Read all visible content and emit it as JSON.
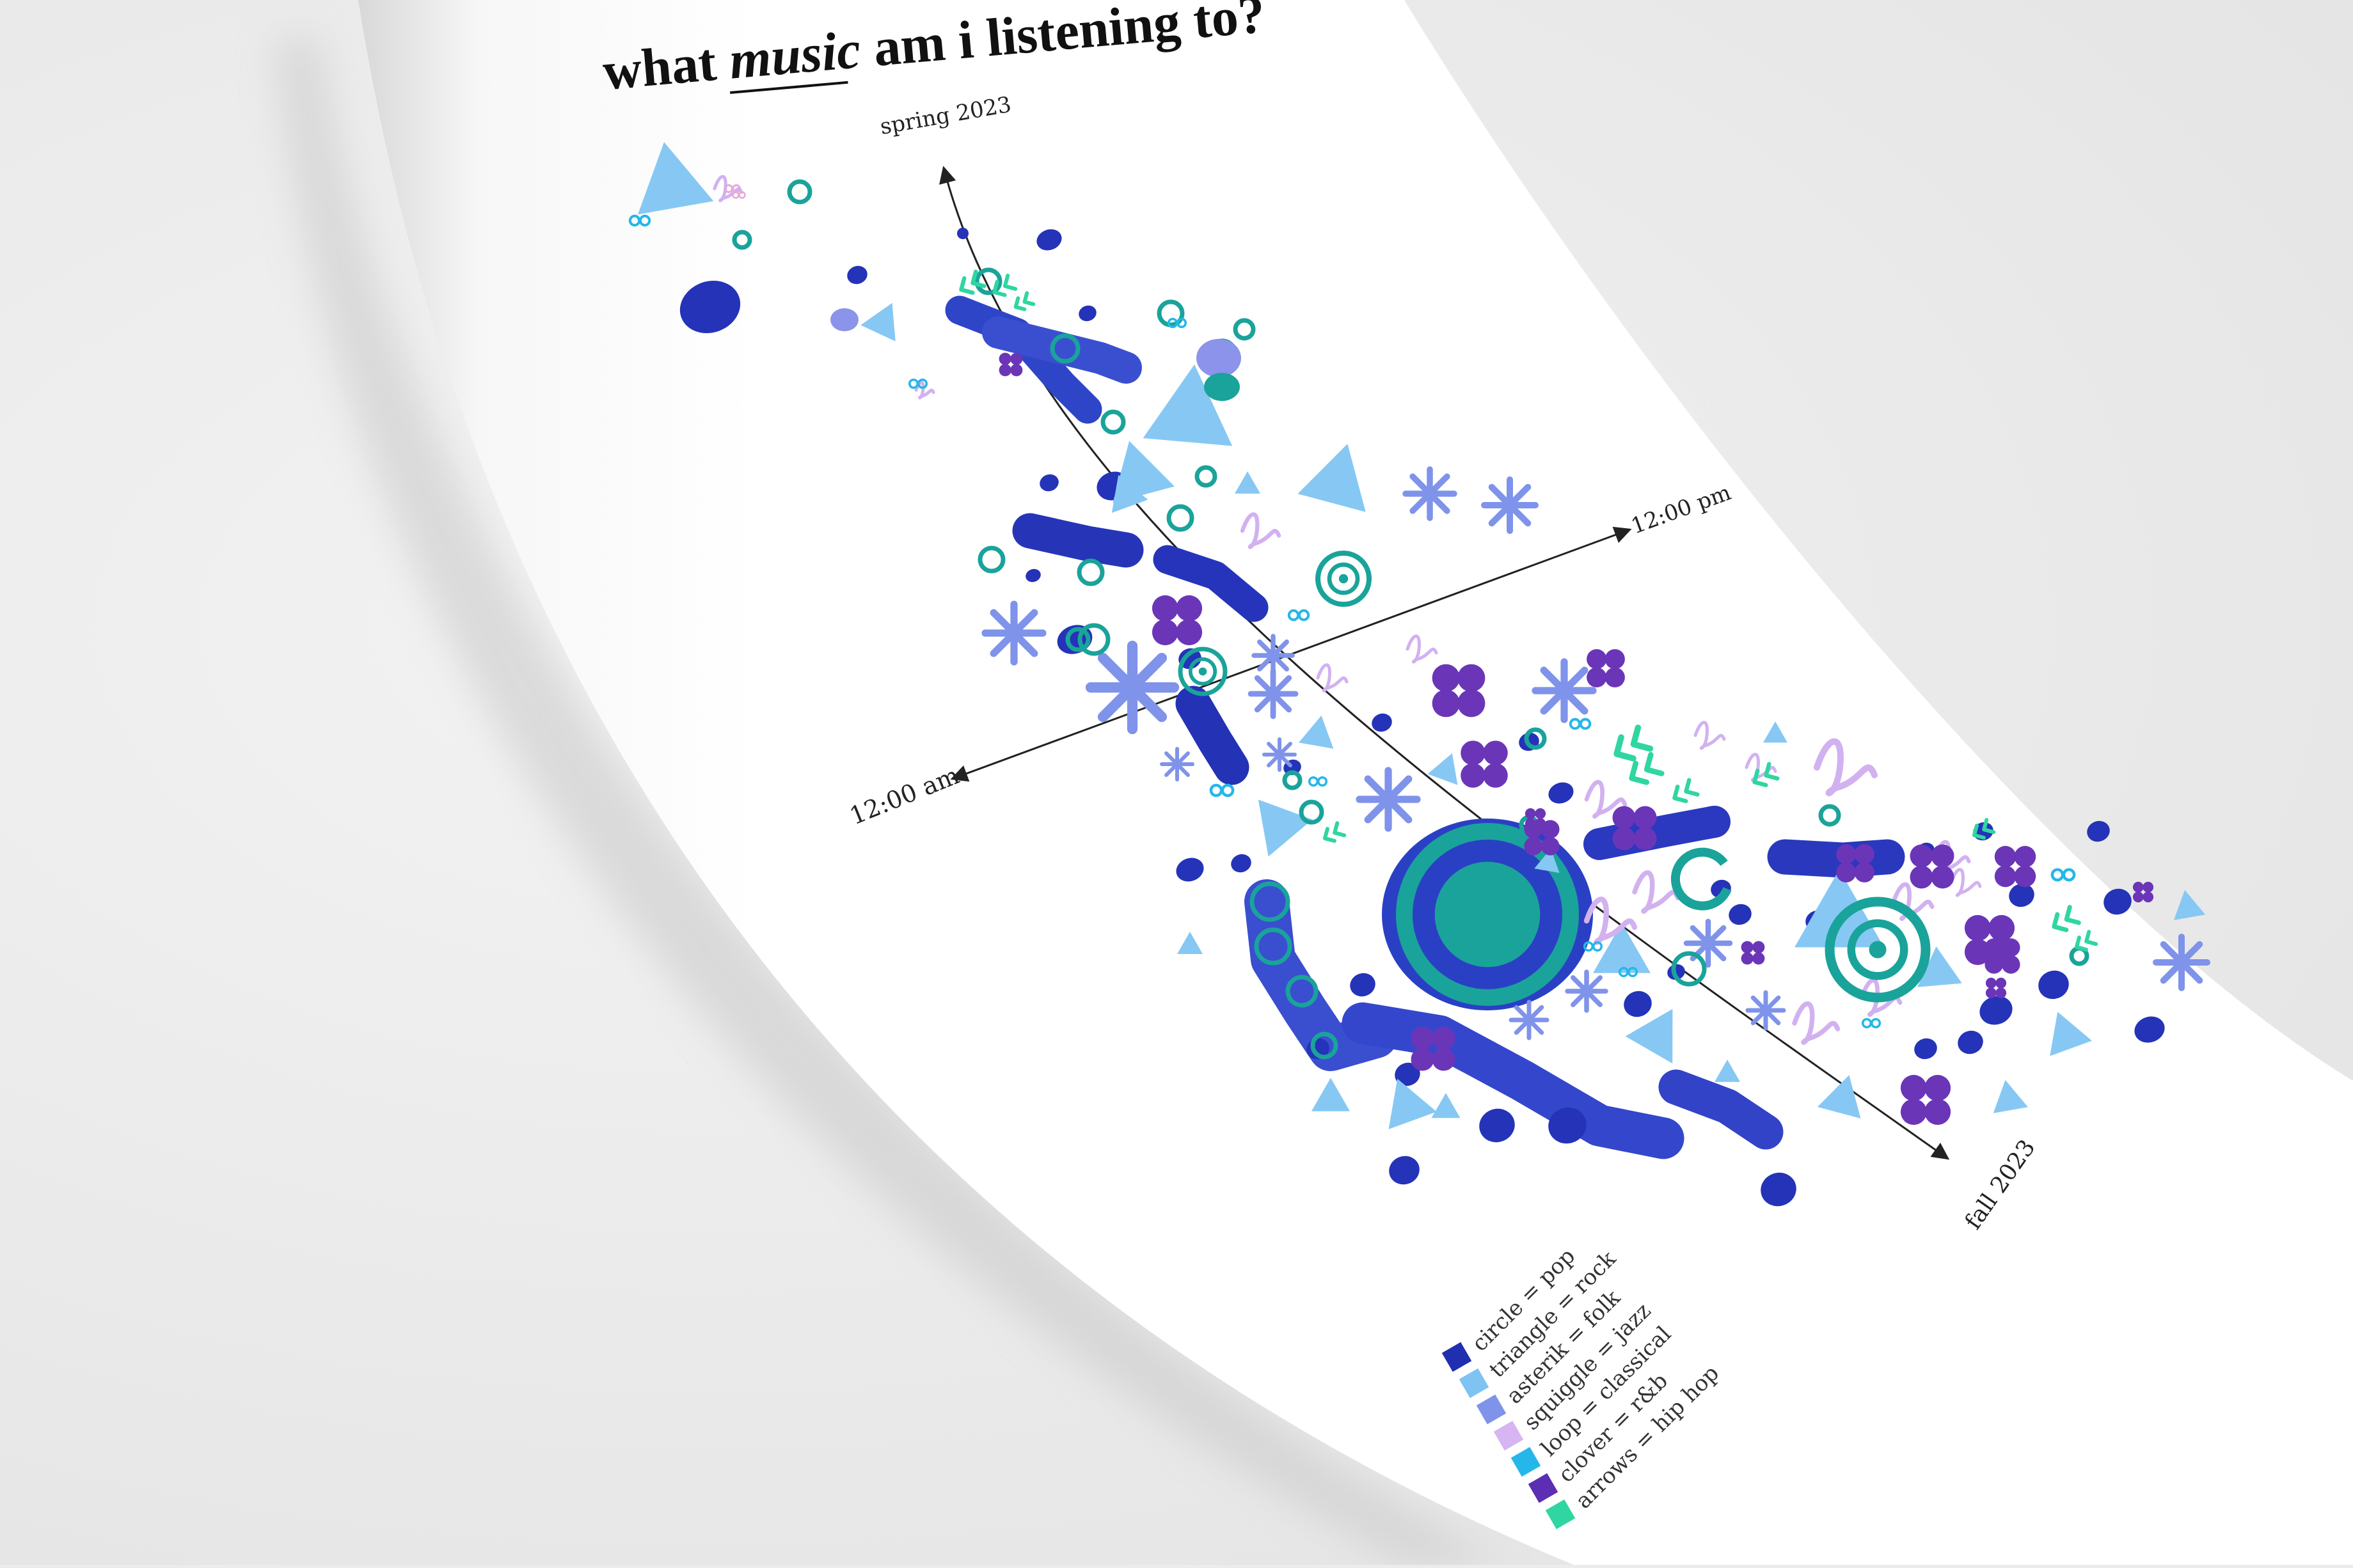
{
  "title": {
    "before": "what ",
    "emphasis": "music",
    "after": " am i listening to?"
  },
  "axes": {
    "top": "spring 2023",
    "bottom": "fall 2023",
    "left": "12:00 am",
    "right": "12:00 pm"
  },
  "legend": [
    {
      "label": "circle = pop",
      "color": "#1f2fb0"
    },
    {
      "label": "triangle = rock",
      "color": "#7ec3f2"
    },
    {
      "label": "asterik = folk",
      "color": "#7f93ea"
    },
    {
      "label": "squiggle = jazz",
      "color": "#d6b5f2"
    },
    {
      "label": "loop = classical",
      "color": "#25b7ea"
    },
    {
      "label": "clover = r&b",
      "color": "#5b2eb3"
    },
    {
      "label": "arrows = hip hop",
      "color": "#2fd6a1"
    }
  ],
  "colors": {
    "pop": "#2433b8",
    "rock": "#86c8f3",
    "folk": "#7f93ea",
    "jazz": "#d2b1f0",
    "classical": "#1aa39a",
    "rnb": "#6b35b8",
    "hiphop": "#2fd6a1"
  }
}
